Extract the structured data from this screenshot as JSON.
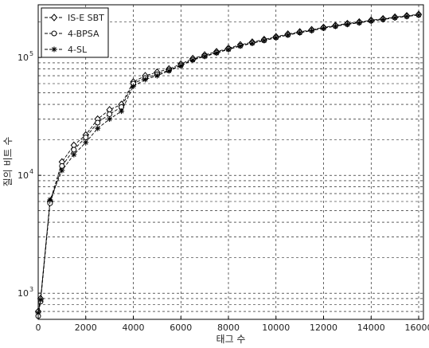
{
  "chart_data": {
    "type": "line",
    "title": "",
    "xlabel": "태그 수",
    "ylabel": "질의 비트 수",
    "xlim": [
      0,
      16200
    ],
    "ylim": [
      600,
      280000
    ],
    "yscale": "log",
    "grid": true,
    "legend_position": "top-left",
    "xticks": [
      0,
      2000,
      4000,
      6000,
      8000,
      10000,
      12000,
      14000,
      16000
    ],
    "xtick_labels": [
      "0",
      "2000",
      "4000",
      "6000",
      "8000",
      "10000",
      "12000",
      "14000",
      "16000"
    ],
    "yticks": [
      {
        "base": "10",
        "exp": "3",
        "value": 1000
      },
      {
        "base": "10",
        "exp": "4",
        "value": 10000
      },
      {
        "base": "10",
        "exp": "5",
        "value": 100000
      }
    ],
    "series": [
      {
        "name": "IS-E SBT",
        "marker": "diamond",
        "x": [
          0,
          100,
          500,
          1000,
          1500,
          2000,
          2500,
          3000,
          3500,
          4000,
          4500,
          5000,
          5500,
          6000,
          6500,
          7000,
          7500,
          8000,
          8500,
          9000,
          9500,
          10000,
          10500,
          11000,
          11500,
          12000,
          12500,
          13000,
          13500,
          14000,
          14500,
          15000,
          15500,
          16000
        ],
        "y": [
          700,
          900,
          6000,
          13000,
          18000,
          22000,
          30000,
          36000,
          40000,
          62000,
          70000,
          75000,
          80000,
          88000,
          98000,
          105000,
          112000,
          120000,
          128000,
          135000,
          142000,
          150000,
          158000,
          165000,
          172000,
          180000,
          187000,
          194000,
          200000,
          207000,
          213000,
          220000,
          226000,
          232000
        ]
      },
      {
        "name": "4-BPSA",
        "marker": "circle",
        "x": [
          0,
          100,
          500,
          1000,
          1500,
          2000,
          2500,
          3000,
          3500,
          4000,
          4500,
          5000,
          5500,
          6000,
          6500,
          7000,
          7500,
          8000,
          8500,
          9000,
          9500,
          10000,
          10500,
          11000,
          11500,
          12000,
          12500,
          13000,
          13500,
          14000,
          14500,
          15000,
          15500,
          16000
        ],
        "y": [
          640,
          850,
          5800,
          12000,
          16500,
          21000,
          28000,
          33000,
          38000,
          60000,
          67000,
          72000,
          78000,
          86000,
          96000,
          103000,
          110000,
          118000,
          126000,
          133000,
          140000,
          148000,
          156000,
          163000,
          170000,
          178000,
          185000,
          192000,
          198000,
          205000,
          211000,
          218000,
          224000,
          230000
        ]
      },
      {
        "name": "4-SL",
        "marker": "asterisk",
        "x": [
          0,
          100,
          500,
          1000,
          1500,
          2000,
          2500,
          3000,
          3500,
          4000,
          4500,
          5000,
          5500,
          6000,
          6500,
          7000,
          7500,
          8000,
          8500,
          9000,
          9500,
          10000,
          10500,
          11000,
          11500,
          12000,
          12500,
          13000,
          13500,
          14000,
          14500,
          15000,
          15500,
          16000
        ],
        "y": [
          680,
          880,
          6200,
          11000,
          15000,
          19000,
          25000,
          30000,
          35000,
          57000,
          65000,
          70000,
          77000,
          85000,
          95000,
          102000,
          109000,
          117000,
          125000,
          132000,
          139000,
          147000,
          155000,
          162000,
          169000,
          177000,
          184000,
          191000,
          197000,
          204000,
          210000,
          217000,
          223000,
          229000
        ]
      }
    ]
  }
}
